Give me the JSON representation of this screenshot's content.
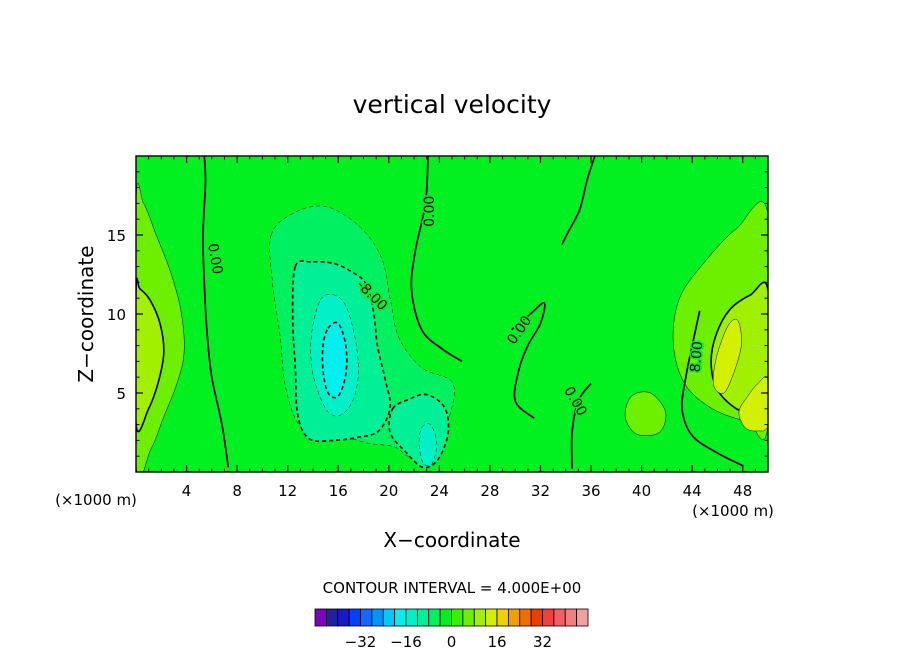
{
  "chart_data": {
    "type": "heatmap",
    "title": "vertical velocity",
    "xlabel": "X−coordinate",
    "ylabel": "Z−coordinate",
    "x_unit_left": "(×1000 m)",
    "x_unit_right": "(×1000 m)",
    "xlim": [
      0,
      50
    ],
    "ylim": [
      0,
      20
    ],
    "x_ticks": [
      4,
      8,
      12,
      16,
      20,
      24,
      28,
      32,
      36,
      40,
      44,
      48
    ],
    "x_tick_labels": [
      "4",
      "8",
      "12",
      "16",
      "20",
      "24",
      "28",
      "32",
      "36",
      "40",
      "44",
      "48"
    ],
    "y_ticks": [
      5,
      10,
      15
    ],
    "y_tick_labels": [
      "5",
      "10",
      "15"
    ],
    "contour_interval_text": "CONTOUR INTERVAL = 4.000E+00",
    "contour_labels": [
      {
        "text": "0.00",
        "x": 6.3,
        "z": 13.5,
        "angle": 80
      },
      {
        "text": "0.00",
        "x": 23.2,
        "z": 16.5,
        "angle": -90
      },
      {
        "text": "-8.00",
        "x": 18.7,
        "z": 11.2,
        "angle": 45
      },
      {
        "text": "0.00",
        "x": 30.3,
        "z": 9.0,
        "angle": -55
      },
      {
        "text": "0.00",
        "x": 34.8,
        "z": 4.5,
        "angle": 60
      },
      {
        "text": "8.00",
        "x": 44.3,
        "z": 7.3,
        "angle": -85
      }
    ],
    "colorbar": {
      "colors": [
        "#8000bf",
        "#2020a0",
        "#1818c8",
        "#0040ff",
        "#1468ff",
        "#0096ff",
        "#00c8ff",
        "#00f0f0",
        "#00f0c8",
        "#00f096",
        "#00f060",
        "#00f020",
        "#38f000",
        "#6cf000",
        "#a0f000",
        "#d2f000",
        "#f0d200",
        "#f0a000",
        "#f06e00",
        "#f03c00",
        "#f04040",
        "#f06060",
        "#f08080",
        "#f0a0a0"
      ],
      "tick_values": [
        -32,
        -16,
        0,
        16,
        32
      ],
      "tick_labels": [
        "−32",
        "−16",
        "0",
        "16",
        "32"
      ],
      "min": -48,
      "max": 48
    },
    "blobs": [
      {
        "level": 4,
        "color": "#6cf000",
        "pts": [
          [
            0,
            0.6
          ],
          [
            1.2,
            1.5
          ],
          [
            2.2,
            3.5
          ],
          [
            3.2,
            5.5
          ],
          [
            3.8,
            7.5
          ],
          [
            3.6,
            10
          ],
          [
            2.8,
            12.5
          ],
          [
            1.6,
            15
          ],
          [
            0.6,
            17
          ],
          [
            0,
            17
          ]
        ]
      },
      {
        "level": 8,
        "color": "#a0f000",
        "pts": [
          [
            0,
            3
          ],
          [
            1,
            4
          ],
          [
            1.8,
            5.8
          ],
          [
            2.2,
            7.6
          ],
          [
            1.9,
            9.4
          ],
          [
            1.1,
            10.9
          ],
          [
            0.3,
            11.6
          ],
          [
            0,
            11.6
          ]
        ]
      },
      {
        "level": -4,
        "color": "#00f060",
        "pts": [
          [
            10.7,
            15
          ],
          [
            12.5,
            16.4
          ],
          [
            15,
            16.8
          ],
          [
            17.6,
            15.6
          ],
          [
            19.4,
            13.6
          ],
          [
            20.1,
            11
          ],
          [
            20.8,
            8.5
          ],
          [
            22.6,
            6.6
          ],
          [
            25,
            5.7
          ],
          [
            24.9,
            3.8
          ],
          [
            23.7,
            1.5
          ],
          [
            23,
            0.5
          ],
          [
            21.5,
            1
          ],
          [
            20.4,
            1.6
          ],
          [
            18.5,
            1.8
          ],
          [
            16.5,
            2.2
          ],
          [
            14.5,
            2.2
          ],
          [
            12.8,
            3.1
          ],
          [
            11.8,
            5.5
          ],
          [
            11.4,
            8.6
          ],
          [
            10.8,
            12
          ]
        ]
      },
      {
        "level": -8,
        "color": "#00f096",
        "pts": [
          [
            12.6,
            13
          ],
          [
            13.9,
            13.3
          ],
          [
            15.6,
            13.2
          ],
          [
            17,
            12.7
          ],
          [
            18.2,
            11.9
          ],
          [
            18.8,
            10.1
          ],
          [
            19.1,
            8
          ],
          [
            19.7,
            5.9
          ],
          [
            20.1,
            4.1
          ],
          [
            19.2,
            2.6
          ],
          [
            17.6,
            2.2
          ],
          [
            15.6,
            2
          ],
          [
            13.7,
            2.1
          ],
          [
            12.8,
            3.6
          ],
          [
            12.6,
            6.6
          ],
          [
            12.4,
            9.8
          ]
        ]
      },
      {
        "level": -8,
        "color": "#00f096",
        "pts": [
          [
            20.3,
            4
          ],
          [
            21.6,
            4.6
          ],
          [
            23,
            4.9
          ],
          [
            24.4,
            4.1
          ],
          [
            24.7,
            2.5
          ],
          [
            23.9,
            0.8
          ],
          [
            22.7,
            0.3
          ],
          [
            21.3,
            1.3
          ],
          [
            20.1,
            2.5
          ]
        ]
      },
      {
        "level": -12,
        "color": "#00f0c8",
        "pts": [
          [
            14.6,
            10.9
          ],
          [
            15.7,
            11.2
          ],
          [
            16.6,
            10.5
          ],
          [
            17.3,
            8.6
          ],
          [
            17.6,
            6.4
          ],
          [
            17.2,
            4.6
          ],
          [
            16.2,
            3.6
          ],
          [
            15.2,
            3.8
          ],
          [
            14.4,
            5.1
          ],
          [
            13.9,
            6.7
          ],
          [
            13.9,
            8.8
          ]
        ]
      },
      {
        "level": -16,
        "color": "#00f0f0",
        "pts": [
          [
            15.2,
            9.1
          ],
          [
            16,
            9.4
          ],
          [
            16.6,
            8
          ],
          [
            16.6,
            6.2
          ],
          [
            16,
            4.8
          ],
          [
            15.2,
            5
          ],
          [
            14.8,
            6.4
          ],
          [
            14.8,
            8
          ]
        ]
      },
      {
        "level": -12,
        "color": "#00f0c8",
        "pts": [
          [
            22.6,
            2.8
          ],
          [
            23.3,
            3
          ],
          [
            23.8,
            1.8
          ],
          [
            23.4,
            0.5
          ],
          [
            22.7,
            0.6
          ],
          [
            22.4,
            1.8
          ]
        ]
      },
      {
        "level": 4,
        "color": "#6cf000",
        "pts": [
          [
            50,
            16.3
          ],
          [
            47.5,
            15.4
          ],
          [
            45,
            13.3
          ],
          [
            43,
            11
          ],
          [
            42.5,
            8.2
          ],
          [
            43.4,
            5.6
          ],
          [
            45.6,
            4
          ],
          [
            48.3,
            3.2
          ],
          [
            50,
            3
          ]
        ]
      },
      {
        "level": 4,
        "color": "#6cf000",
        "pts": [
          [
            39.2,
            4.8
          ],
          [
            40.7,
            5
          ],
          [
            41.9,
            3.8
          ],
          [
            41.4,
            2.5
          ],
          [
            39.6,
            2.4
          ],
          [
            38.7,
            3.5
          ]
        ]
      },
      {
        "level": 8,
        "color": "#a0f000",
        "pts": [
          [
            50,
            11.5
          ],
          [
            48.6,
            11.2
          ],
          [
            47,
            10.3
          ],
          [
            45.9,
            8.7
          ],
          [
            45.5,
            6.9
          ],
          [
            46,
            5.2
          ],
          [
            47.5,
            4
          ],
          [
            49,
            3.7
          ],
          [
            50,
            4
          ]
        ]
      },
      {
        "level": 12,
        "color": "#d2f000",
        "pts": [
          [
            46.8,
            9.2
          ],
          [
            47.6,
            9.6
          ],
          [
            47.9,
            8.1
          ],
          [
            47.3,
            6.3
          ],
          [
            46.5,
            5
          ],
          [
            45.7,
            5.5
          ],
          [
            45.9,
            7.2
          ]
        ]
      },
      {
        "level": 12,
        "color": "#d2f000",
        "pts": [
          [
            50,
            5.9
          ],
          [
            49.2,
            5.6
          ],
          [
            48.4,
            4.8
          ],
          [
            47.7,
            3.8
          ],
          [
            48.2,
            2.8
          ],
          [
            49.2,
            2.6
          ],
          [
            50,
            3
          ]
        ]
      }
    ]
  }
}
